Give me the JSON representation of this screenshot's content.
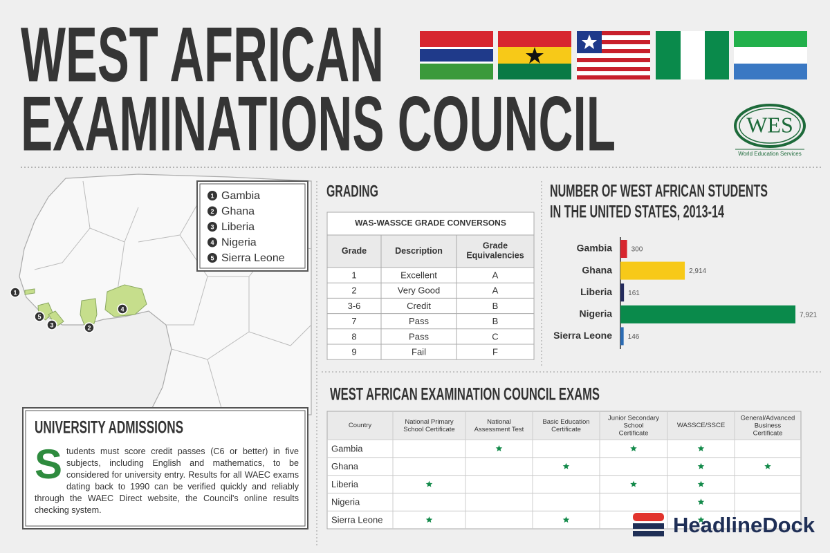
{
  "header": {
    "title_line1": "WEST AFRICAN",
    "title_line2": "EXAMINATIONS COUNCIL"
  },
  "logo": {
    "mark": "WES",
    "name": "World Education Services"
  },
  "map_legend": [
    {
      "number": 1,
      "name": "Gambia"
    },
    {
      "number": 2,
      "name": "Ghana"
    },
    {
      "number": 3,
      "name": "Liberia"
    },
    {
      "number": 4,
      "name": "Nigeria"
    },
    {
      "number": 5,
      "name": "Sierra Leone"
    }
  ],
  "grading": {
    "heading": "GRADING",
    "table_title": "WAS-WASSCE GRADE CONVERSONS",
    "columns": [
      "Grade",
      "Description",
      "Grade Equivalencies"
    ],
    "rows": [
      [
        "1",
        "Excellent",
        "A"
      ],
      [
        "2",
        "Very Good",
        "A"
      ],
      [
        "3-6",
        "Credit",
        "B"
      ],
      [
        "7",
        "Pass",
        "B"
      ],
      [
        "8",
        "Pass",
        "C"
      ],
      [
        "9",
        "Fail",
        "F"
      ]
    ]
  },
  "chart_data": {
    "type": "bar",
    "orientation": "horizontal",
    "title_line1": "NUMBER OF WEST AFRICAN STUDENTS",
    "title_line2": "IN THE UNITED STATES, 2013-14",
    "categories": [
      "Gambia",
      "Ghana",
      "Liberia",
      "Nigeria",
      "Sierra Leone"
    ],
    "values": [
      300,
      2914,
      161,
      7921,
      146
    ],
    "value_labels": [
      "300",
      "2,914",
      "161",
      "7,921",
      "146"
    ],
    "colors": [
      "#d7262f",
      "#f7c918",
      "#232a5c",
      "#0a8a4b",
      "#2b6bb3"
    ]
  },
  "exams": {
    "heading": "WEST AFRICAN EXAMINATION COUNCIL EXAMS",
    "columns": [
      "Country",
      "National Primary School Certificate",
      "National Assessment Test",
      "Basic Education Certificate",
      "Junior Secondary School Certificate",
      "WASSCE/SSCE",
      "General/Advanced Business Certificate"
    ],
    "rows": [
      {
        "country": "Gambia",
        "offered": [
          false,
          true,
          false,
          true,
          true,
          false
        ]
      },
      {
        "country": "Ghana",
        "offered": [
          false,
          false,
          true,
          false,
          true,
          true
        ]
      },
      {
        "country": "Liberia",
        "offered": [
          true,
          false,
          false,
          true,
          true,
          false
        ]
      },
      {
        "country": "Nigeria",
        "offered": [
          false,
          false,
          false,
          false,
          true,
          false
        ]
      },
      {
        "country": "Sierra Leone",
        "offered": [
          true,
          false,
          true,
          false,
          true,
          false
        ]
      }
    ]
  },
  "admissions": {
    "heading": "UNIVERSITY ADMISSIONS",
    "drop_cap": "S",
    "text": "tudents must score credit passes (C6 or better) in five subjects, including English and mathematics, to be considered for university entry. Results for all WAEC exams dating back to 1990 can be verified quickly and reliably through the WAEC Direct website, the Council's online results checking system."
  },
  "brand": {
    "name": "HeadlineDock"
  }
}
